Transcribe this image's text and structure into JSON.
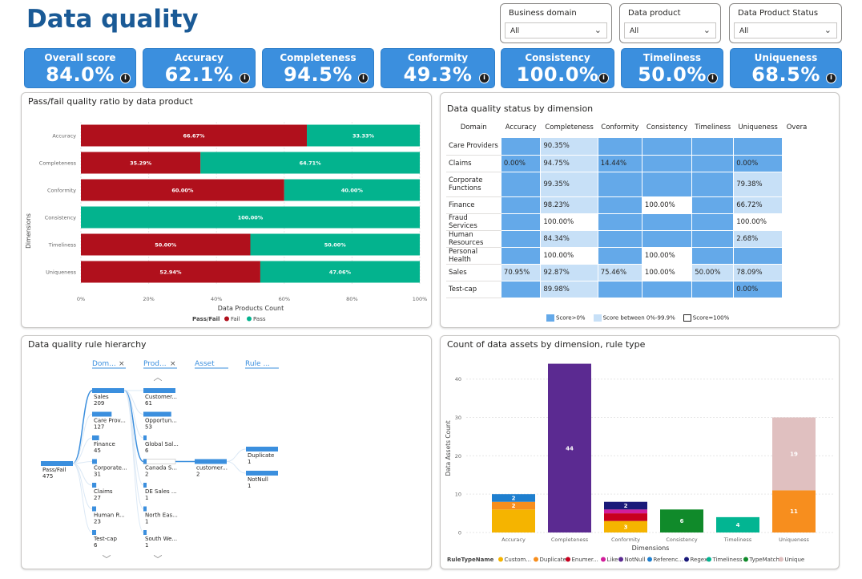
{
  "page_title": "Data quality",
  "slicers": [
    {
      "label": "Business domain",
      "value": "All"
    },
    {
      "label": "Data product",
      "value": "All"
    },
    {
      "label": "Data Product Status",
      "value": "All"
    }
  ],
  "kpis": [
    {
      "label": "Overall score",
      "value": "84.0%"
    },
    {
      "label": "Accuracy",
      "value": "62.1%"
    },
    {
      "label": "Completeness",
      "value": "94.5%"
    },
    {
      "label": "Conformity",
      "value": "49.3%"
    },
    {
      "label": "Consistency",
      "value": "100.0%"
    },
    {
      "label": "Timeliness",
      "value": "50.0%"
    },
    {
      "label": "Uniqueness",
      "value": "68.5%"
    }
  ],
  "passfail_chart": {
    "title": "Pass/fail quality ratio by data product",
    "chart_data": {
      "type": "bar",
      "orientation": "horizontal-stacked-100",
      "categories": [
        "Accuracy",
        "Completeness",
        "Conformity",
        "Consistency",
        "Timeliness",
        "Uniqueness"
      ],
      "series": [
        {
          "name": "Fail",
          "color": "#b0101c",
          "values": [
            66.67,
            35.29,
            60.0,
            0,
            50.0,
            52.94
          ],
          "labels": [
            "66.67%",
            "35.29%",
            "60.00%",
            "",
            "50.00%",
            "52.94%"
          ]
        },
        {
          "name": "Pass",
          "color": "#03b38e",
          "values": [
            33.33,
            64.71,
            40.0,
            100.0,
            50.0,
            47.06
          ],
          "labels": [
            "33.33%",
            "64.71%",
            "40.00%",
            "100.00%",
            "50.00%",
            "47.06%"
          ]
        }
      ],
      "xticks": [
        "0%",
        "20%",
        "40%",
        "60%",
        "80%",
        "100%"
      ],
      "xlabel": "Data Products Count",
      "ylabel": "Dimensions",
      "legend_title": "Pass/Fail",
      "legend": [
        "Fail",
        "Pass"
      ]
    }
  },
  "matrix": {
    "title": "Data quality status by dimension",
    "columns": [
      "Domain",
      "Accuracy",
      "Completeness",
      "Conformity",
      "Consistency",
      "Timeliness",
      "Uniqueness",
      "Overa"
    ],
    "rows": [
      {
        "domain": "Care Providers",
        "cells": [
          "",
          "90.35%",
          "",
          "",
          "",
          "",
          ""
        ],
        "shade": [
          "b",
          "l",
          "b",
          "b",
          "b",
          "b",
          "w"
        ]
      },
      {
        "domain": "Claims",
        "cells": [
          "0.00%",
          "94.75%",
          "14.44%",
          "",
          "",
          "0.00%",
          ""
        ],
        "shade": [
          "b",
          "l",
          "b",
          "b",
          "b",
          "b",
          "w"
        ]
      },
      {
        "domain": "Corporate Functions",
        "cells": [
          "",
          "99.35%",
          "",
          "",
          "",
          "79.38%",
          ""
        ],
        "shade": [
          "b",
          "l",
          "b",
          "b",
          "b",
          "l",
          "w"
        ]
      },
      {
        "domain": "Finance",
        "cells": [
          "",
          "98.23%",
          "",
          "100.00%",
          "",
          "66.72%",
          ""
        ],
        "shade": [
          "b",
          "l",
          "b",
          "w",
          "b",
          "l",
          "w"
        ]
      },
      {
        "domain": "Fraud Services",
        "cells": [
          "",
          "100.00%",
          "",
          "",
          "",
          "100.00%",
          ""
        ],
        "shade": [
          "b",
          "w",
          "b",
          "b",
          "b",
          "w",
          "w"
        ]
      },
      {
        "domain": "Human Resources",
        "cells": [
          "",
          "84.34%",
          "",
          "",
          "",
          "2.68%",
          ""
        ],
        "shade": [
          "b",
          "l",
          "b",
          "b",
          "b",
          "l",
          "w"
        ]
      },
      {
        "domain": "Personal Health",
        "cells": [
          "",
          "100.00%",
          "",
          "100.00%",
          "",
          "",
          ""
        ],
        "shade": [
          "b",
          "w",
          "b",
          "w",
          "b",
          "b",
          "w"
        ]
      },
      {
        "domain": "Sales",
        "cells": [
          "70.95%",
          "92.87%",
          "75.46%",
          "100.00%",
          "50.00%",
          "78.09%",
          ""
        ],
        "shade": [
          "l",
          "l",
          "l",
          "w",
          "l",
          "l",
          "w"
        ]
      },
      {
        "domain": "Test-cap",
        "cells": [
          "",
          "89.98%",
          "",
          "",
          "",
          "0.00%",
          ""
        ],
        "shade": [
          "b",
          "l",
          "b",
          "b",
          "b",
          "b",
          "w"
        ]
      }
    ],
    "legend": [
      "Score>0%",
      "Score between 0%-99.9%",
      "Score=100%"
    ],
    "colors": {
      "strong": "#64a9e9",
      "light": "#c7e0f7",
      "full": "#ffffff"
    }
  },
  "hierarchy": {
    "title": "Data quality rule hierarchy",
    "headers": [
      "Dom...",
      "Prod...",
      "Asset",
      "Rule ..."
    ],
    "root": {
      "label": "Pass/Fail",
      "value": "475"
    },
    "domains": [
      {
        "label": "Sales",
        "value": "209"
      },
      {
        "label": "Care Prov...",
        "value": "127"
      },
      {
        "label": "Finance",
        "value": "45"
      },
      {
        "label": "Corporate...",
        "value": "31"
      },
      {
        "label": "Claims",
        "value": "27"
      },
      {
        "label": "Human R...",
        "value": "23"
      },
      {
        "label": "Test-cap",
        "value": "6"
      }
    ],
    "products": [
      {
        "label": "Customer...",
        "value": "61"
      },
      {
        "label": "Opportun...",
        "value": "53"
      },
      {
        "label": "Global Sal...",
        "value": "6"
      },
      {
        "label": "Canada S...",
        "value": "2"
      },
      {
        "label": "DE Sales ...",
        "value": "1"
      },
      {
        "label": "North Eas...",
        "value": "1"
      },
      {
        "label": "South We...",
        "value": "1"
      }
    ],
    "asset": {
      "label": "customer...",
      "value": "2"
    },
    "rules": [
      {
        "label": "Duplicate",
        "value": "1"
      },
      {
        "label": "NotNull",
        "value": "1"
      }
    ]
  },
  "assets_chart": {
    "title": "Count of data assets by dimension, rule type",
    "chart_data": {
      "type": "bar",
      "orientation": "vertical-stacked",
      "categories": [
        "Accuracy",
        "Completeness",
        "Conformity",
        "Consistency",
        "Timeliness",
        "Uniqueness"
      ],
      "series": [
        {
          "name": "Custom...",
          "color": "#f5b400",
          "values": [
            6,
            0,
            3,
            0,
            0,
            0
          ]
        },
        {
          "name": "Duplicate",
          "color": "#f78e1e",
          "values": [
            2,
            0,
            0,
            0,
            0,
            11
          ]
        },
        {
          "name": "Enumer...",
          "color": "#c8001f",
          "values": [
            0,
            0,
            2,
            0,
            0,
            0
          ]
        },
        {
          "name": "Like",
          "color": "#d21e9c",
          "values": [
            0,
            0,
            1,
            0,
            0,
            0
          ]
        },
        {
          "name": "NotNull",
          "color": "#5b2a91",
          "values": [
            0,
            44,
            0,
            0,
            0,
            0
          ]
        },
        {
          "name": "Referenc...",
          "color": "#1e7fcf",
          "values": [
            2,
            0,
            0,
            0,
            0,
            0
          ]
        },
        {
          "name": "Regex",
          "color": "#1a1a7a",
          "values": [
            0,
            0,
            2,
            0,
            0,
            0
          ]
        },
        {
          "name": "Timeliness",
          "color": "#02b592",
          "values": [
            0,
            0,
            0,
            0,
            4,
            0
          ]
        },
        {
          "name": "TypeMatch",
          "color": "#108a2a",
          "values": [
            0,
            0,
            0,
            6,
            0,
            0
          ]
        },
        {
          "name": "Unique",
          "color": "#e0c0c0",
          "values": [
            0,
            0,
            0,
            0,
            0,
            19
          ]
        }
      ],
      "bar_labels": [
        [
          [
            "",
            6
          ],
          [
            "2",
            2
          ],
          [
            "2",
            2
          ]
        ],
        [
          [
            "44",
            44
          ]
        ],
        [
          [
            "3",
            3
          ],
          [
            "",
            2
          ],
          [
            "",
            1
          ],
          [
            "2",
            2
          ]
        ],
        [
          [
            "6",
            6
          ]
        ],
        [
          [
            "4",
            4
          ]
        ],
        [
          [
            "11",
            11
          ],
          [
            "19",
            19
          ]
        ]
      ],
      "yticks": [
        "0",
        "10",
        "20",
        "30",
        "40"
      ],
      "ylim": [
        0,
        46
      ],
      "xlabel": "Dimensions",
      "ylabel": "Data Assets Count",
      "legend_title": "RuleTypeName"
    }
  }
}
